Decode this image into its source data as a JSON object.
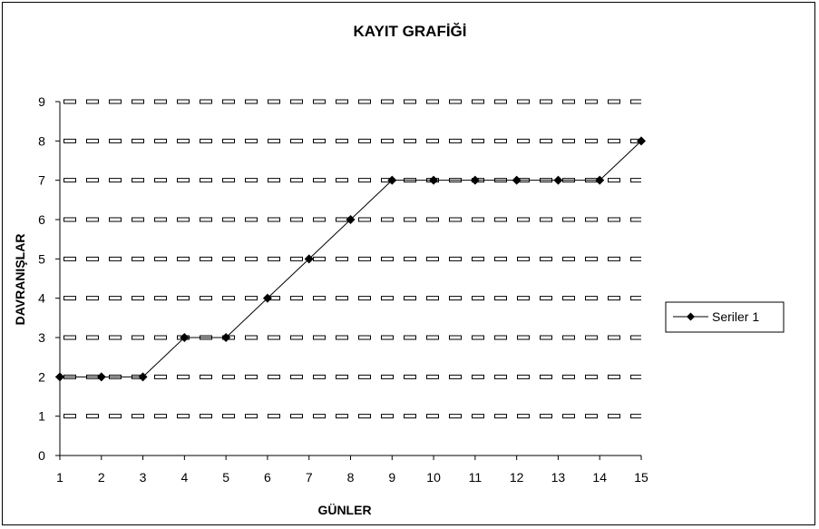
{
  "chart_data": {
    "type": "line",
    "title": "KAYIT GRAFİĞİ",
    "xlabel": "GÜNLER",
    "ylabel": "DAVRANIŞLAR",
    "x": [
      1,
      2,
      3,
      4,
      5,
      6,
      7,
      8,
      9,
      10,
      11,
      12,
      13,
      14,
      15
    ],
    "xlim": [
      1,
      15
    ],
    "ylim": [
      0,
      9
    ],
    "x_ticks": [
      "1",
      "2",
      "3",
      "4",
      "5",
      "6",
      "7",
      "8",
      "9",
      "10",
      "11",
      "12",
      "13",
      "14",
      "15"
    ],
    "y_ticks": [
      "0",
      "1",
      "2",
      "3",
      "4",
      "5",
      "6",
      "7",
      "8",
      "9"
    ],
    "series": [
      {
        "name": "Seriler 1",
        "values": [
          2,
          2,
          2,
          3,
          3,
          4,
          5,
          6,
          7,
          7,
          7,
          7,
          7,
          7,
          8
        ],
        "marker": "diamond",
        "color": "#000000"
      }
    ],
    "grid": true,
    "grid_style": "dashed-boxes",
    "legend_position": "right"
  }
}
